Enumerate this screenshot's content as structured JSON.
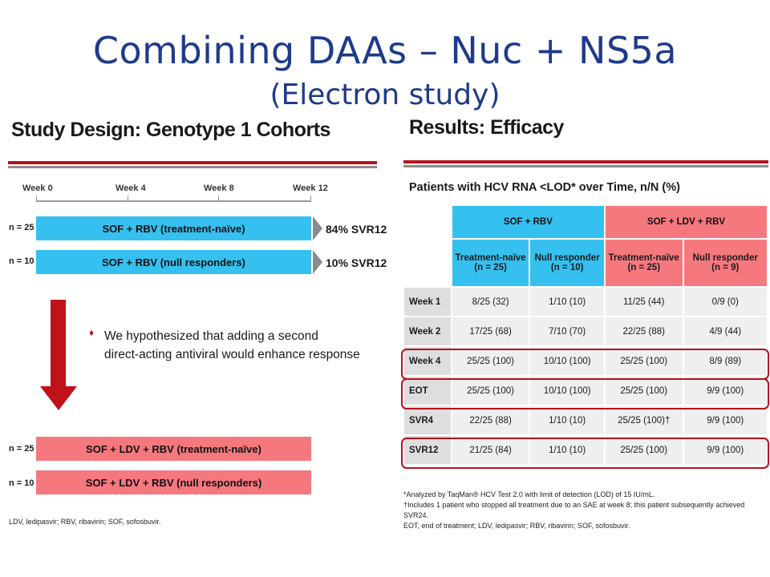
{
  "title": "Combining DAAs – Nuc + NS5a",
  "subtitle": "(Electron study)",
  "left": {
    "heading": "Study Design: Genotype 1 Cohorts",
    "weeks": [
      "Week 0",
      "Week 4",
      "Week 8",
      "Week 12"
    ],
    "cohorts_top": [
      {
        "n": "n = 25",
        "label": "SOF + RBV (treatment-naïve)",
        "result": "84% SVR12"
      },
      {
        "n": "n = 10",
        "label": "SOF + RBV (null responders)",
        "result": "10% SVR12"
      }
    ],
    "hypothesis_line1": "We hypothesized that adding a second",
    "hypothesis_line2": "direct-acting antiviral would enhance response",
    "bullet": "♦",
    "cohorts_bottom": [
      {
        "n": "n = 25",
        "label": "SOF + LDV + RBV (treatment-naïve)"
      },
      {
        "n": "n = 10",
        "label": "SOF + LDV + RBV (null responders)"
      }
    ],
    "footnote": "LDV, ledipasvir; RBV, ribavirin; SOF, sofosbuvir."
  },
  "right": {
    "heading": "Results: Efficacy",
    "table_title": "Patients with HCV RNA <LOD* over Time, n/N (%)",
    "groups": [
      "SOF + RBV",
      "SOF + LDV + RBV"
    ],
    "subheaders": [
      {
        "line1": "Treatment-naïve",
        "line2": "(n = 25)"
      },
      {
        "line1": "Null responder",
        "line2": "(n = 10)"
      },
      {
        "line1": "Treatment-naïve",
        "line2": "(n = 25)"
      },
      {
        "line1": "Null responder",
        "line2": "(n = 9)"
      }
    ],
    "rows": [
      {
        "label": "Week 1",
        "cells": [
          "8/25 (32)",
          "1/10 (10)",
          "11/25 (44)",
          "0/9 (0)"
        ]
      },
      {
        "label": "Week 2",
        "cells": [
          "17/25 (68)",
          "7/10 (70)",
          "22/25 (88)",
          "4/9 (44)"
        ]
      },
      {
        "label": "Week 4",
        "cells": [
          "25/25 (100)",
          "10/10 (100)",
          "25/25 (100)",
          "8/9 (89)"
        ]
      },
      {
        "label": "EOT",
        "cells": [
          "25/25 (100)",
          "10/10 (100)",
          "25/25 (100)",
          "9/9 (100)"
        ]
      },
      {
        "label": "SVR4",
        "cells": [
          "22/25 (88)",
          "1/10 (10)",
          "25/25 (100)†",
          "9/9 (100)"
        ]
      },
      {
        "label": "SVR12",
        "cells": [
          "21/25 (84)",
          "1/10 (10)",
          "25/25 (100)",
          "9/9 (100)"
        ]
      }
    ],
    "footnotes": [
      "*Analyzed by TaqMan® HCV Test 2.0 with limit of detection (LOD) of 15 IU/mL.",
      "†Includes 1 patient who stopped all treatment due to an SAE at week 8; this patient subsequently achieved SVR24.",
      "EOT, end of treatment; LDV, ledipasvir; RBV, ribavirin; SOF, sofosbuvir."
    ]
  }
}
